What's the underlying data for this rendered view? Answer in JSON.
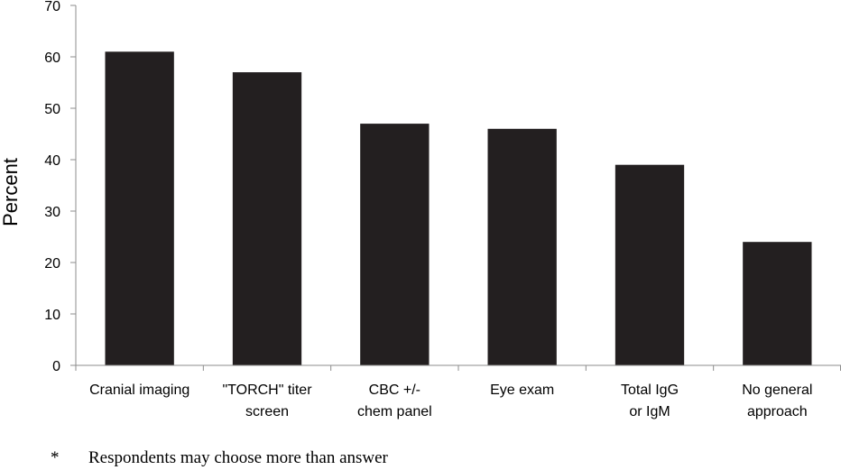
{
  "chart_data": {
    "type": "bar",
    "categories": [
      [
        "Cranial imaging"
      ],
      [
        "\"TORCH\" titer",
        "screen"
      ],
      [
        "CBC +/-",
        "chem panel"
      ],
      [
        "Eye exam"
      ],
      [
        "Total IgG",
        "or IgM"
      ],
      [
        "No general",
        "approach"
      ]
    ],
    "values": [
      61,
      57,
      47,
      46,
      39,
      24
    ],
    "ylabel": "Percent",
    "xlabel": "",
    "ylim": [
      0,
      70
    ],
    "yticks": [
      0,
      10,
      20,
      30,
      40,
      50,
      60,
      70
    ],
    "bar_color": "#231f20",
    "grid": false
  },
  "footnote": {
    "symbol": "*",
    "text": "Respondents may choose more than answer"
  }
}
